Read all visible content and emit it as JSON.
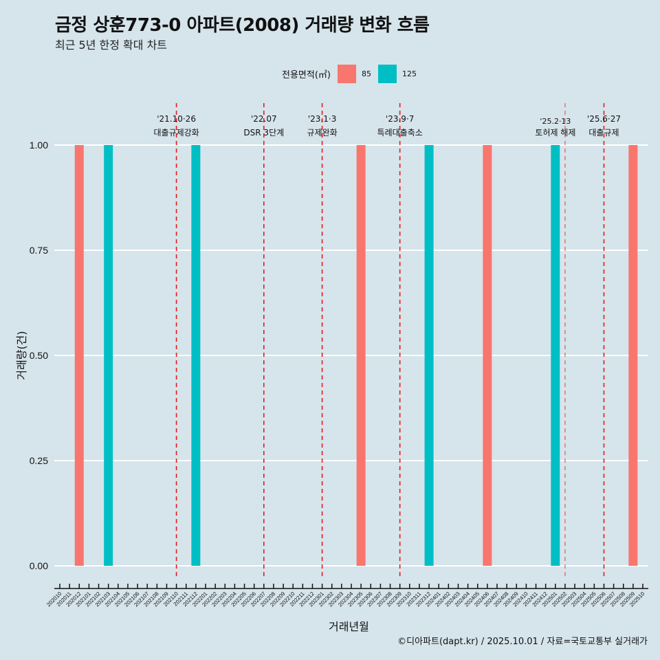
{
  "header": {
    "title": "금정 상훈773-0 아파트(2008) 거래량 변화 흐름",
    "subtitle": "최근 5년 한정 확대 차트"
  },
  "legend": {
    "title": "전용면적(㎡)",
    "items": [
      {
        "label": "85",
        "color": "#F8766D"
      },
      {
        "label": "125",
        "color": "#00BFC4"
      }
    ]
  },
  "footer": "©디아파트(dapt.kr) / 2025.10.01 / 자료=국토교통부 실거래가",
  "chart_data": {
    "type": "bar",
    "title": "금정 상훈773-0 아파트(2008) 거래량 변화 흐름",
    "subtitle": "최근 5년 한정 확대 차트",
    "xlabel": "거래년월",
    "ylabel": "거래량(건)",
    "ylim": [
      0,
      1
    ],
    "yticks": [
      "0.00",
      "0.25",
      "0.50",
      "0.75",
      "1.00"
    ],
    "ytick_values": [
      0,
      0.25,
      0.5,
      0.75,
      1.0
    ],
    "grid": true,
    "legend_position": "top",
    "categories": [
      "202010",
      "202011",
      "202012",
      "202101",
      "202102",
      "202103",
      "202104",
      "202105",
      "202106",
      "202107",
      "202108",
      "202109",
      "202110",
      "202111",
      "202112",
      "202201",
      "202202",
      "202203",
      "202204",
      "202205",
      "202206",
      "202207",
      "202208",
      "202209",
      "202210",
      "202211",
      "202212",
      "202301",
      "202302",
      "202303",
      "202304",
      "202305",
      "202306",
      "202307",
      "202308",
      "202309",
      "202310",
      "202311",
      "202312",
      "202401",
      "202402",
      "202403",
      "202404",
      "202405",
      "202406",
      "202407",
      "202408",
      "202409",
      "202410",
      "202411",
      "202412",
      "202501",
      "202502",
      "202503",
      "202504",
      "202505",
      "202506",
      "202507",
      "202508",
      "202509",
      "202510"
    ],
    "series": [
      {
        "name": "85",
        "color": "#F8766D",
        "points": [
          {
            "x": "202012",
            "y": 1
          },
          {
            "x": "202305",
            "y": 1
          },
          {
            "x": "202406",
            "y": 1
          },
          {
            "x": "202509",
            "y": 1
          }
        ]
      },
      {
        "name": "125",
        "color": "#00BFC4",
        "points": [
          {
            "x": "202103",
            "y": 1
          },
          {
            "x": "202112",
            "y": 1
          },
          {
            "x": "202312",
            "y": 1
          },
          {
            "x": "202501",
            "y": 1
          }
        ]
      }
    ],
    "annotations": [
      {
        "x": "202110",
        "date": "'21.10·26",
        "label": "대출규제강화",
        "style": "dashed"
      },
      {
        "x": "202207",
        "date": "'22.07",
        "label": "DSR 3단계",
        "style": "dashed"
      },
      {
        "x": "202301",
        "date": "'23.1·3",
        "label": "규제완화",
        "style": "dashed"
      },
      {
        "x": "202309",
        "date": "'23.9·7",
        "label": "특례대출축소",
        "style": "dashed"
      },
      {
        "x": "202502",
        "date": "'25.2·13",
        "label": "토허제 해제",
        "style": "dashed-light"
      },
      {
        "x": "202506",
        "date": "'25.6·27",
        "label": "대출규제",
        "style": "dashed"
      }
    ]
  }
}
